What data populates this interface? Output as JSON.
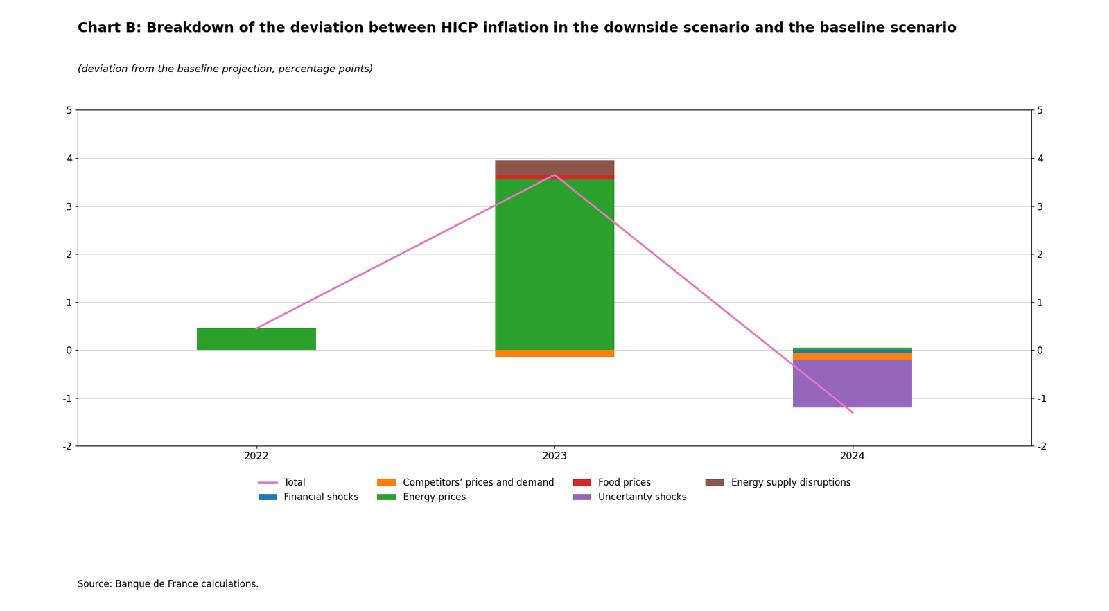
{
  "chart_data": {
    "type": "bar",
    "stacked": true,
    "title": "Chart B: Breakdown of the deviation between HICP inflation in the downside scenario and the baseline scenario",
    "subtitle": "(deviation from the baseline projection, percentage points)",
    "annotations": [
      "Source: Banque de France calculations."
    ],
    "categories": [
      "2022",
      "2023",
      "2024"
    ],
    "series": [
      {
        "name": "Total",
        "type": "line",
        "values": [
          0.45,
          3.65,
          -1.3
        ]
      },
      {
        "name": "Financial shocks",
        "values": [
          0.0,
          0.0,
          -0.05
        ]
      },
      {
        "name": "Competitors’ prices and demand",
        "values": [
          0.0,
          -0.15,
          -0.15
        ]
      },
      {
        "name": "Energy prices",
        "values": [
          0.45,
          3.55,
          0.05
        ]
      },
      {
        "name": "Food prices",
        "values": [
          0.0,
          0.1,
          0.0
        ]
      },
      {
        "name": "Uncertainty shocks",
        "values": [
          0.0,
          0.0,
          -1.0
        ]
      },
      {
        "name": "Energy supply disruptions",
        "values": [
          0.0,
          0.3,
          0.0
        ]
      }
    ],
    "ylim": [
      -2,
      5
    ],
    "yticks": [
      -2,
      -1,
      0,
      1,
      2,
      3,
      4,
      5
    ],
    "y2lim": [
      -2,
      5
    ],
    "y2ticks": [
      -2,
      -1,
      0,
      1,
      2,
      3,
      4,
      5
    ],
    "grid": true,
    "legend": "upper center"
  }
}
